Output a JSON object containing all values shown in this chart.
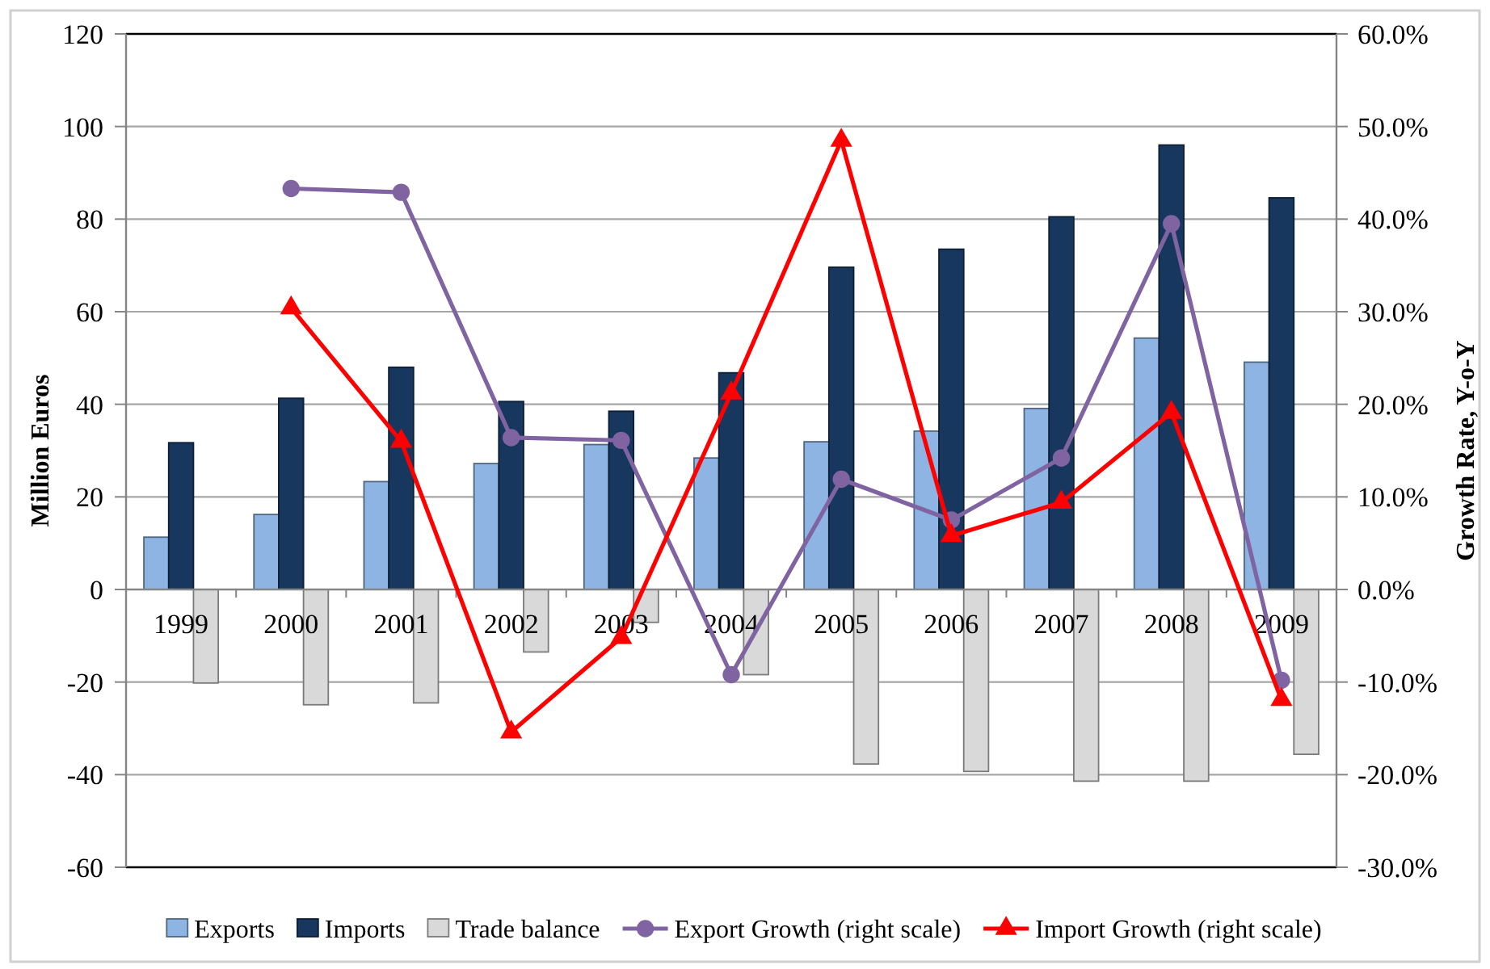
{
  "chart_data": {
    "type": "bar",
    "categories": [
      "1999",
      "2000",
      "2001",
      "2002",
      "2003",
      "2004",
      "2005",
      "2006",
      "2007",
      "2008",
      "2009"
    ],
    "series": [
      {
        "name": "Exports",
        "color": "#8eb4e3",
        "values": [
          11.3,
          16.2,
          23.3,
          27.2,
          31.3,
          28.4,
          31.9,
          34.2,
          39.1,
          54.3,
          49.1
        ]
      },
      {
        "name": "Imports",
        "color": "#17375e",
        "values": [
          31.7,
          41.3,
          48.0,
          40.6,
          38.5,
          46.8,
          69.6,
          73.5,
          80.5,
          96.0,
          84.6
        ]
      },
      {
        "name": "Trade balance",
        "color": "#d9d9d9",
        "values": [
          -20.2,
          -24.9,
          -24.5,
          -13.5,
          -7.1,
          -18.4,
          -37.7,
          -39.3,
          -41.4,
          -41.4,
          -35.6
        ]
      },
      {
        "name": "Export Growth (right scale)",
        "type": "line",
        "axis": "y2",
        "color": "#8064a2",
        "marker": "circle",
        "values": [
          null,
          43.3,
          42.9,
          16.4,
          16.1,
          -9.2,
          11.9,
          7.5,
          14.2,
          39.5,
          -9.8
        ]
      },
      {
        "name": "Import Growth (right scale)",
        "type": "line",
        "axis": "y2",
        "color": "#ff0000",
        "marker": "triangle",
        "values": [
          null,
          30.4,
          16.0,
          -15.4,
          -5.2,
          21.2,
          48.5,
          5.8,
          9.4,
          19.1,
          -11.9
        ]
      }
    ],
    "ylabel": "Million Euros",
    "y2label": "Growth Rate, Y-o-Y",
    "ylim": [
      -60,
      120
    ],
    "yticks": [
      -60,
      -40,
      -20,
      0,
      20,
      40,
      60,
      80,
      100,
      120
    ],
    "y2lim": [
      -30,
      60
    ],
    "y2ticks": [
      {
        "value": -30,
        "label": "-30.0%"
      },
      {
        "value": -20,
        "label": "-20.0%"
      },
      {
        "value": -10,
        "label": "-10.0%"
      },
      {
        "value": 0,
        "label": "0.0%"
      },
      {
        "value": 10,
        "label": "10.0%"
      },
      {
        "value": 20,
        "label": "20.0%"
      },
      {
        "value": 30,
        "label": "30.0%"
      },
      {
        "value": 40,
        "label": "40.0%"
      },
      {
        "value": 50,
        "label": "50.0%"
      },
      {
        "value": 60,
        "label": "60.0%"
      }
    ],
    "grid": "y",
    "legend": "bottom"
  }
}
